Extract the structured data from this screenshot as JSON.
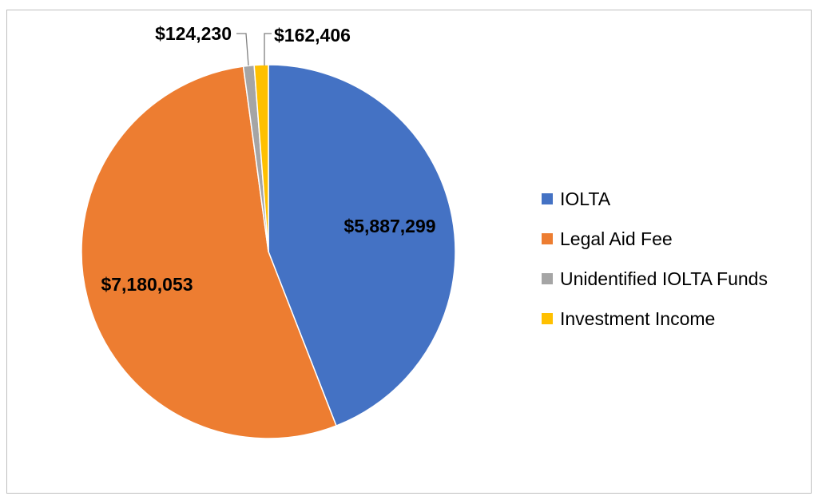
{
  "chart_data": {
    "type": "pie",
    "slices": [
      {
        "name": "IOLTA",
        "value": 5887299,
        "label": "$5,887,299",
        "color": "#4472C4"
      },
      {
        "name": "Legal Aid Fee",
        "value": 7180053,
        "label": "$7,180,053",
        "color": "#ED7D31"
      },
      {
        "name": "Unidentified IOLTA Funds",
        "value": 124230,
        "label": "$124,230",
        "color": "#A5A5A5"
      },
      {
        "name": "Investment Income",
        "value": 162406,
        "label": "$162,406",
        "color": "#FFC000"
      }
    ],
    "title": "",
    "legend_position": "right"
  }
}
